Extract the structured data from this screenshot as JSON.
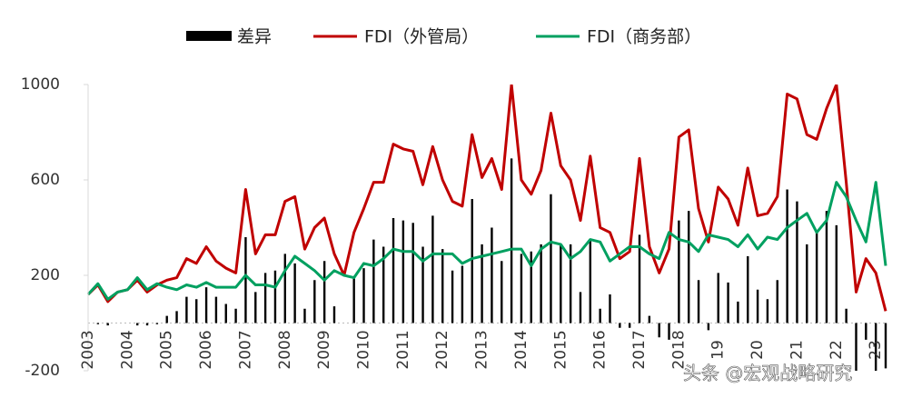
{
  "chart_data": {
    "type": "bar",
    "categories": [
      "2003",
      null,
      null,
      null,
      "2004",
      null,
      null,
      null,
      "2005",
      null,
      null,
      null,
      "2006",
      null,
      null,
      null,
      "2007",
      null,
      null,
      null,
      "2008",
      null,
      null,
      null,
      "2009",
      null,
      null,
      null,
      "2010",
      null,
      null,
      null,
      "2011",
      null,
      null,
      null,
      "2012",
      null,
      null,
      null,
      "2013",
      null,
      null,
      null,
      "2014",
      null,
      null,
      null,
      "2015",
      null,
      null,
      null,
      "2016",
      null,
      null,
      null,
      "2017",
      null,
      null,
      null,
      "2018",
      null,
      null,
      null,
      "19",
      null,
      null,
      null,
      "20",
      null,
      null,
      null,
      "21",
      null,
      null,
      null,
      "22",
      null,
      null,
      null,
      "23",
      null
    ],
    "series": [
      {
        "name": "差异",
        "type": "bar",
        "color": "#000000",
        "values": [
          0,
          -5,
          -10,
          0,
          0,
          -10,
          -10,
          -5,
          30,
          50,
          110,
          100,
          150,
          110,
          80,
          60,
          360,
          130,
          210,
          220,
          290,
          250,
          60,
          180,
          260,
          70,
          0,
          190,
          230,
          350,
          320,
          440,
          430,
          420,
          320,
          450,
          310,
          220,
          240,
          520,
          330,
          400,
          260,
          690,
          290,
          300,
          330,
          540,
          330,
          330,
          130,
          350,
          60,
          120,
          -20,
          -20,
          370,
          30,
          -60,
          -70,
          430,
          470,
          180,
          -30,
          210,
          170,
          90,
          280,
          140,
          100,
          180,
          560,
          510,
          330,
          390,
          470,
          410,
          60,
          -300,
          -70,
          -380,
          -190
        ]
      },
      {
        "name": "FDI（外管局）",
        "type": "line",
        "color": "#c00000",
        "values": [
          120,
          160,
          90,
          130,
          140,
          180,
          130,
          160,
          180,
          190,
          270,
          250,
          320,
          260,
          230,
          210,
          560,
          290,
          370,
          370,
          510,
          530,
          310,
          400,
          440,
          290,
          200,
          380,
          480,
          590,
          590,
          750,
          730,
          720,
          580,
          740,
          600,
          510,
          490,
          790,
          610,
          690,
          560,
          1000,
          600,
          540,
          640,
          880,
          660,
          600,
          430,
          700,
          400,
          380,
          270,
          300,
          690,
          320,
          210,
          310,
          780,
          810,
          480,
          340,
          570,
          520,
          410,
          650,
          450,
          460,
          530,
          960,
          940,
          790,
          770,
          900,
          1000,
          590,
          130,
          270,
          210,
          50
        ]
      },
      {
        "name": "FDI（商务部）",
        "type": "line",
        "color": "#00a060",
        "values": [
          120,
          165,
          100,
          130,
          140,
          190,
          140,
          165,
          150,
          140,
          160,
          150,
          170,
          150,
          150,
          150,
          200,
          160,
          160,
          150,
          220,
          280,
          250,
          220,
          180,
          220,
          200,
          190,
          250,
          240,
          270,
          310,
          300,
          300,
          260,
          290,
          290,
          290,
          250,
          270,
          280,
          290,
          300,
          310,
          310,
          240,
          310,
          340,
          330,
          270,
          300,
          350,
          340,
          260,
          290,
          320,
          320,
          290,
          270,
          380,
          350,
          340,
          300,
          370,
          360,
          350,
          320,
          370,
          310,
          360,
          350,
          400,
          430,
          460,
          380,
          430,
          590,
          530,
          430,
          340,
          590,
          240
        ]
      }
    ],
    "ylim": [
      -200,
      1000
    ],
    "yticks": [
      -200,
      200,
      600,
      1000
    ],
    "watermark": "头条 @宏观战略研究"
  }
}
